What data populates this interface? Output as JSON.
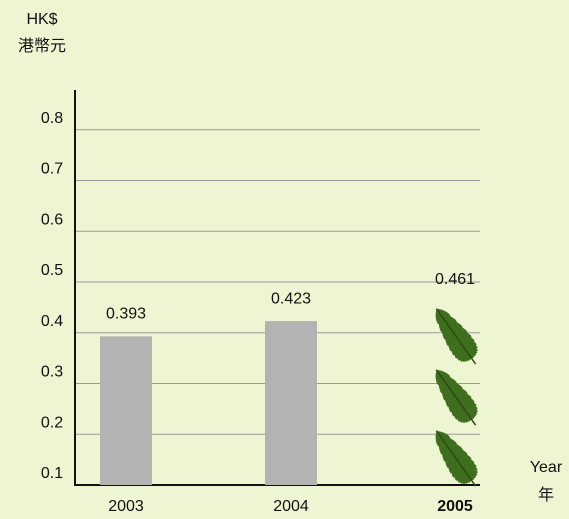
{
  "chart_data": {
    "type": "bar",
    "y_unit": "HK$",
    "y_unit_chinese": "港幣元",
    "x_label": "Year",
    "x_label_chinese": "年",
    "categories": [
      "2003",
      "2004",
      "2005"
    ],
    "values": [
      0.393,
      0.423,
      0.461
    ],
    "color": "#b3b3b3",
    "pictogram_color": "#3f6e1e",
    "ylim": [
      0.1,
      0.9
    ],
    "yticks": [
      0.1,
      0.2,
      0.3,
      0.4,
      0.5,
      0.6,
      0.7,
      0.8
    ],
    "grid": true
  }
}
